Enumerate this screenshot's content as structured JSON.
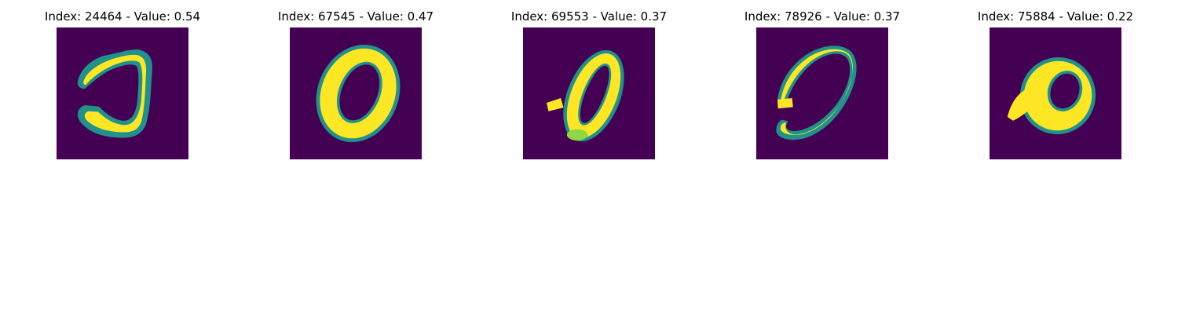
{
  "colors": {
    "background": "#440154",
    "stroke_mid": "#21918c",
    "stroke_high": "#fde725",
    "stroke_edge": "#3b528b"
  },
  "panels": [
    {
      "index": "24464",
      "value": "0.54",
      "title": "Index: 24464 - Value: 0.54"
    },
    {
      "index": "67545",
      "value": "0.47",
      "title": "Index: 67545 - Value: 0.47"
    },
    {
      "index": "69553",
      "value": "0.37",
      "title": "Index: 69553 - Value: 0.37"
    },
    {
      "index": "78926",
      "value": "0.37",
      "title": "Index: 78926 - Value: 0.37"
    },
    {
      "index": "75884",
      "value": "0.22",
      "title": "Index: 75884 - Value: 0.22"
    }
  ]
}
